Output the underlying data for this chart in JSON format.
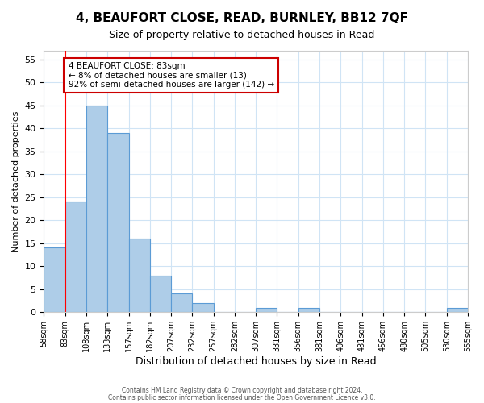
{
  "title": "4, BEAUFORT CLOSE, READ, BURNLEY, BB12 7QF",
  "subtitle": "Size of property relative to detached houses in Read",
  "xlabel": "Distribution of detached houses by size in Read",
  "ylabel": "Number of detached properties",
  "bar_color": "#aecde8",
  "bar_edge_color": "#5b9bd5",
  "background_color": "#ffffff",
  "grid_color": "#d0e4f5",
  "bins": [
    "58sqm",
    "83sqm",
    "108sqm",
    "133sqm",
    "157sqm",
    "182sqm",
    "207sqm",
    "232sqm",
    "257sqm",
    "282sqm",
    "307sqm",
    "331sqm",
    "356sqm",
    "381sqm",
    "406sqm",
    "431sqm",
    "456sqm",
    "480sqm",
    "505sqm",
    "530sqm",
    "555sqm"
  ],
  "values": [
    14,
    24,
    45,
    39,
    16,
    8,
    4,
    2,
    0,
    0,
    1,
    0,
    1,
    0,
    0,
    0,
    0,
    0,
    0,
    1
  ],
  "ylim": [
    0,
    57
  ],
  "yticks": [
    0,
    5,
    10,
    15,
    20,
    25,
    30,
    35,
    40,
    45,
    50,
    55
  ],
  "property_line_x": 1,
  "annotation_title": "4 BEAUFORT CLOSE: 83sqm",
  "annotation_line1": "← 8% of detached houses are smaller (13)",
  "annotation_line2": "92% of semi-detached houses are larger (142) →",
  "annotation_box_color": "#ffffff",
  "annotation_box_edge": "#cc0000",
  "footer1": "Contains HM Land Registry data © Crown copyright and database right 2024.",
  "footer2": "Contains public sector information licensed under the Open Government Licence v3.0."
}
